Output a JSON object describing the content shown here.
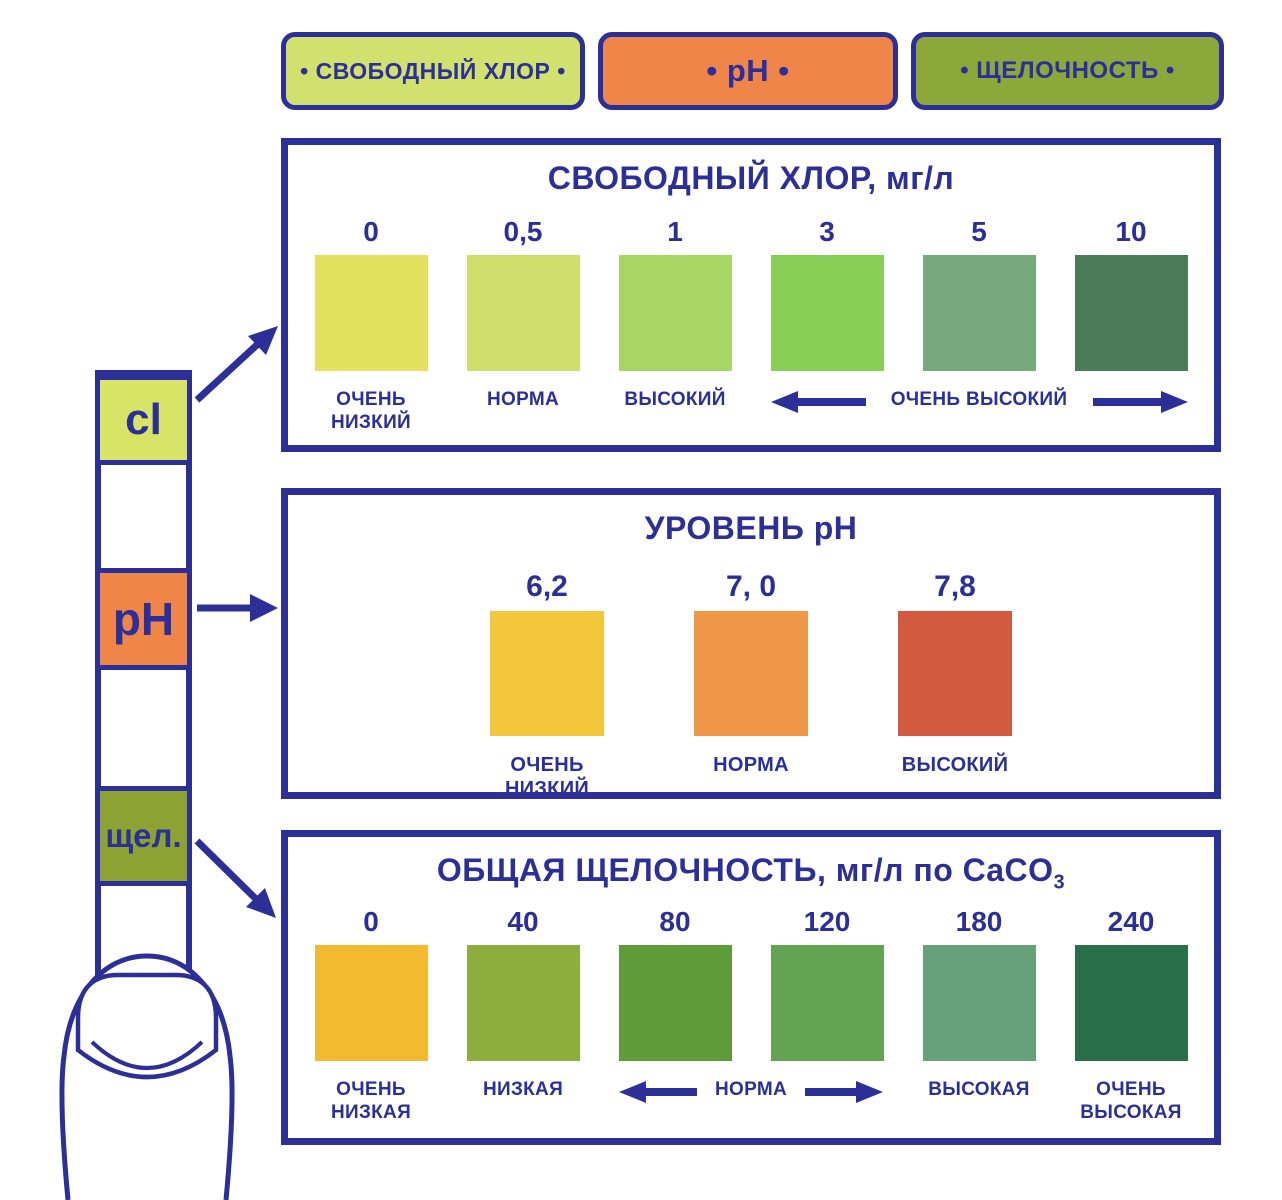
{
  "colors": {
    "ink_blue": "#2c2f97",
    "background": "#ffffff"
  },
  "legend_buttons": [
    {
      "label": "• СВОБОДНЫЙ ХЛОР •",
      "bg": "#d2e06d"
    },
    {
      "label": "• pH •",
      "bg": "#f0854a"
    },
    {
      "label": "• ЩЕЛОЧНОСТЬ •",
      "bg": "#8ca73a"
    }
  ],
  "test_strip": {
    "pads": [
      {
        "label": "cl",
        "bg": "#d8e466"
      },
      {
        "label": "pH",
        "bg": "#f08548"
      },
      {
        "label": "щел.",
        "bg": "#8ca334"
      }
    ]
  },
  "panels": [
    {
      "title": "СВОБОДНЫЙ ХЛОР, мг/л",
      "swatches": [
        {
          "value": "0",
          "color": "#e4e160"
        },
        {
          "value": "0,5",
          "color": "#cfdf6c"
        },
        {
          "value": "1",
          "color": "#a8d665"
        },
        {
          "value": "3",
          "color": "#88cf57"
        },
        {
          "value": "5",
          "color": "#77a97d"
        },
        {
          "value": "10",
          "color": "#4b7b59"
        }
      ],
      "labels": [
        {
          "text": "ОЧЕНЬ НИЗКИЙ",
          "span": 1,
          "arrows": false
        },
        {
          "text": "НОРМА",
          "span": 1,
          "arrows": false
        },
        {
          "text": "ВЫСОКИЙ",
          "span": 1,
          "arrows": false
        },
        {
          "text": "ОЧЕНЬ ВЫСОКИЙ",
          "span": 3,
          "arrows": true
        }
      ]
    },
    {
      "title": "УРОВЕНЬ pH",
      "swatches": [
        {
          "value": "6,2",
          "color": "#f2c73c"
        },
        {
          "value": "7, 0",
          "color": "#f0984a"
        },
        {
          "value": "7,8",
          "color": "#d15a40"
        }
      ],
      "labels": [
        {
          "text": "ОЧЕНЬ НИЗКИЙ",
          "span": 1,
          "arrows": false
        },
        {
          "text": "НОРМА",
          "span": 1,
          "arrows": false
        },
        {
          "text": "ВЫСОКИЙ",
          "span": 1,
          "arrows": false
        }
      ]
    },
    {
      "title": "ОБЩАЯ ЩЕЛОЧНОСТЬ, мг/л по CaCO",
      "title_sub": "3",
      "swatches": [
        {
          "value": "0",
          "color": "#f3ba2f"
        },
        {
          "value": "40",
          "color": "#8ead3f"
        },
        {
          "value": "80",
          "color": "#5e9c3a"
        },
        {
          "value": "120",
          "color": "#63a452"
        },
        {
          "value": "180",
          "color": "#67a17c"
        },
        {
          "value": "240",
          "color": "#286f4a"
        }
      ],
      "labels": [
        {
          "text": "ОЧЕНЬ НИЗКАЯ",
          "span": 1,
          "arrows": false
        },
        {
          "text": "НИЗКАЯ",
          "span": 1,
          "arrows": false
        },
        {
          "text": "НОРМА",
          "span": 2,
          "arrows": true
        },
        {
          "text": "ВЫСОКАЯ",
          "span": 1,
          "arrows": false
        },
        {
          "text": "ОЧЕНЬ ВЫСОКАЯ",
          "span": 1,
          "arrows": false
        }
      ]
    }
  ]
}
